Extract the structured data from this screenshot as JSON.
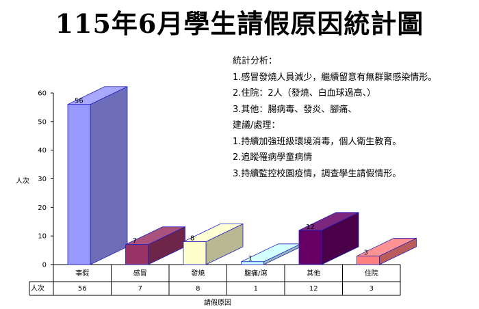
{
  "title": "115年6月學生請假原因統計圖",
  "analysis": {
    "lines": [
      "統計分析：",
      "1.感冒發燒人員減少，繼續留意有無群聚感染情形。",
      "2.住院：2人（發燒、白血球過高、）",
      "3.其他：腸病毒、發炎、腳痛、",
      "建議/處理：",
      "1.持續加強班級環境消毒，個人衛生教育。",
      "2.追蹤罹病學童病情",
      "3.持續監控校園疫情，調查學生請假情形。"
    ]
  },
  "chart_data": {
    "type": "bar",
    "title": "",
    "xlabel": "請假原因",
    "ylabel": "人次",
    "ylim": [
      0,
      60
    ],
    "yticks": [
      0,
      10,
      20,
      30,
      40,
      50,
      60
    ],
    "grid": false,
    "categories": [
      "事假",
      "感冒",
      "發燒",
      "腹痛/瀉",
      "其他",
      "住院"
    ],
    "series": [
      {
        "name": "人次",
        "values": [
          56,
          7,
          8,
          1,
          12,
          3
        ],
        "colors": [
          "#9999ff",
          "#993366",
          "#ffffcc",
          "#ccffff",
          "#660066",
          "#ff8080"
        ]
      }
    ],
    "table_row_label": "人次"
  }
}
